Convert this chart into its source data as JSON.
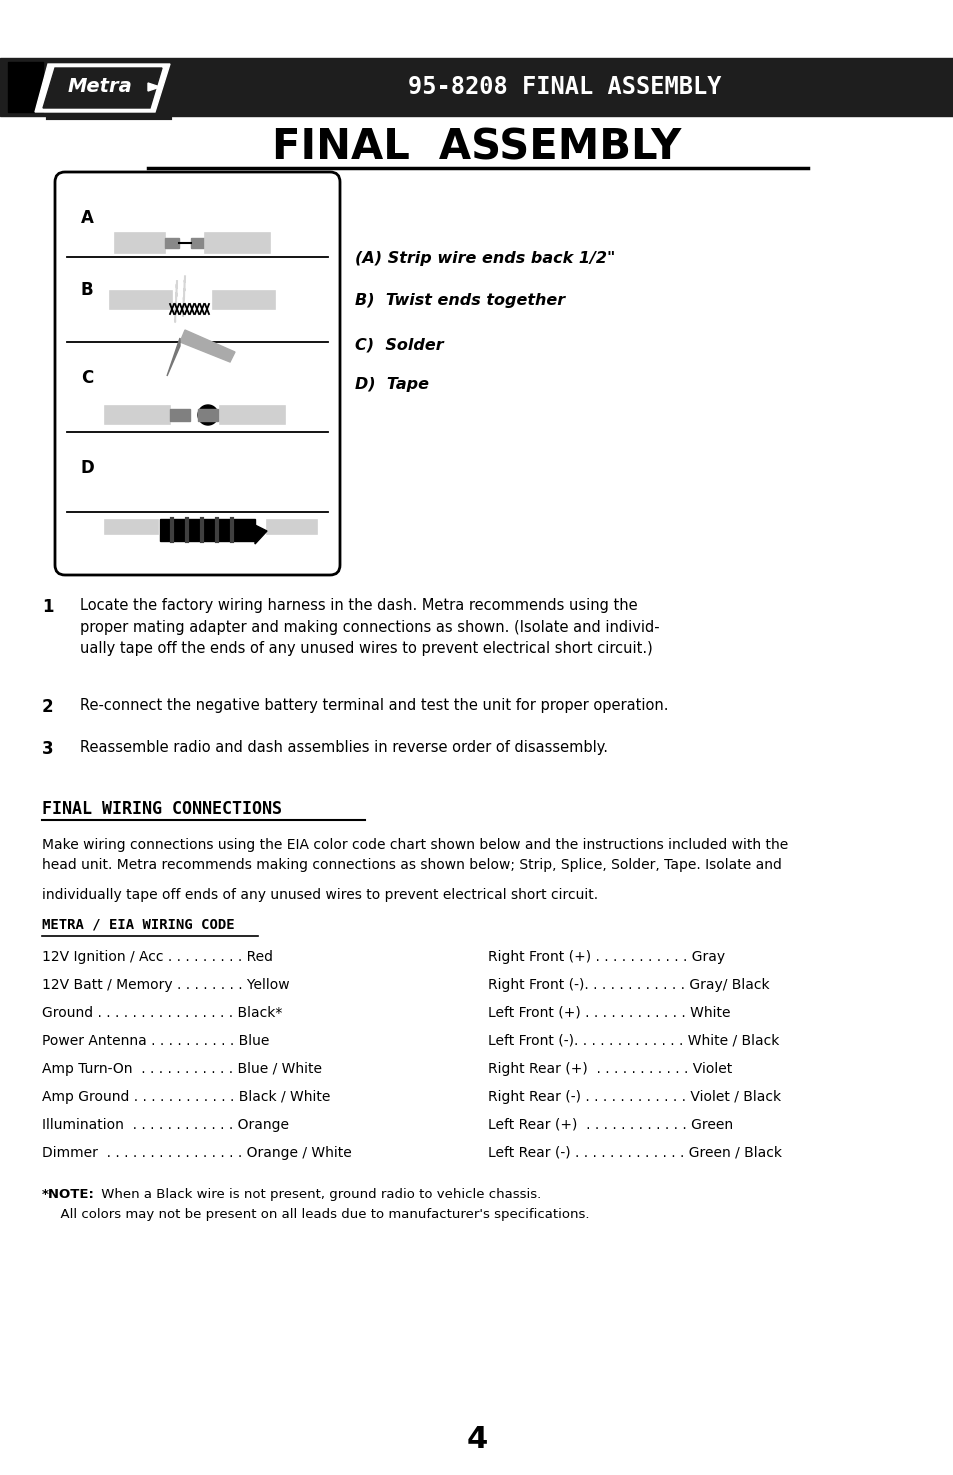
{
  "bg_color": "#ffffff",
  "header_bg": "#1e1e1e",
  "header_text": "95-8208 FINAL ASSEMBLY",
  "header_text_color": "#ffffff",
  "page_title": "FINAL  ASSEMBLY",
  "diagram_labels": [
    "A",
    "B",
    "C",
    "D"
  ],
  "step_labels": [
    "(A) Strip wire ends back 1/2\"",
    "B)  Twist ends together",
    "C)  Solder",
    "D)  Tape"
  ],
  "step1": "Locate the factory wiring harness in the dash. Metra recommends using the\nproper mating adapter and making connections as shown. (Isolate and individ-\nually tape off the ends of any unused wires to prevent electrical short circuit.)",
  "step2": "Re-connect the negative battery terminal and test the unit for proper operation.",
  "step3": "Reassemble radio and dash assemblies in reverse order of disassembly.",
  "section_title": "FINAL WIRING CONNECTIONS",
  "body_line1": "Make wiring connections using the EIA color code chart shown below and the instructions included with the",
  "body_line2": "head unit. Metra recommends making connections as shown below; Strip, Splice, Solder, Tape. Isolate and",
  "body_line3": "individually tape off ends of any unused wires to prevent electrical short circuit.",
  "wiring_subtitle": "METRA / EIA WIRING CODE",
  "left_wiring": [
    "12V Ignition / Acc . . . . . . . . . Red",
    "12V Batt / Memory . . . . . . . . Yellow",
    "Ground . . . . . . . . . . . . . . . . Black*",
    "Power Antenna . . . . . . . . . . Blue",
    "Amp Turn-On  . . . . . . . . . . . Blue / White",
    "Amp Ground . . . . . . . . . . . . Black / White",
    "Illumination  . . . . . . . . . . . . Orange",
    "Dimmer  . . . . . . . . . . . . . . . . Orange / White"
  ],
  "right_wiring": [
    "Right Front (+) . . . . . . . . . . . Gray",
    "Right Front (-). . . . . . . . . . . . Gray/ Black",
    "Left Front (+) . . . . . . . . . . . . White",
    "Left Front (-). . . . . . . . . . . . . White / Black",
    "Right Rear (+)  . . . . . . . . . . . Violet",
    "Right Rear (-) . . . . . . . . . . . . Violet / Black",
    "Left Rear (+)  . . . . . . . . . . . . Green",
    "Left Rear (-) . . . . . . . . . . . . . Green / Black"
  ],
  "note_bold": "*NOTE:",
  "note_rest": " When a Black wire is not present, ground radio to vehicle chassis.",
  "note_line2": "  All colors may not be present on all leads due to manufacturer's specifications.",
  "page_number": "4"
}
